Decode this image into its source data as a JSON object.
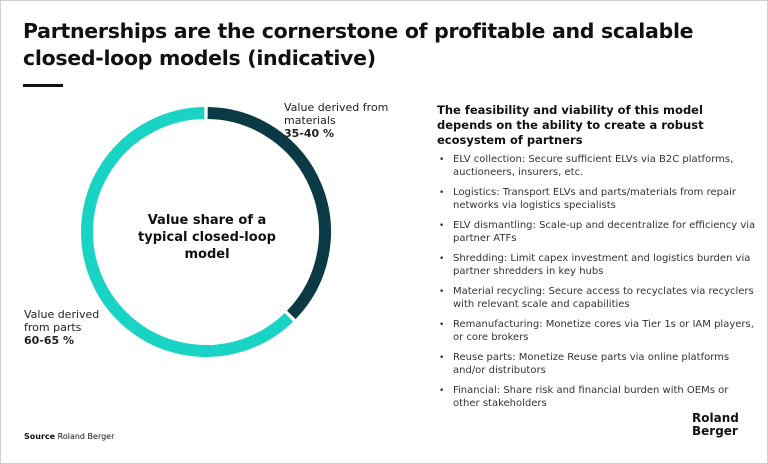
{
  "title": "Partnerships are the cornerstone of profitable and scalable closed-loop models (indicative)",
  "chart_data": {
    "type": "pie",
    "title": "Value share of a typical closed-loop model",
    "categories": [
      "Value derived from materials",
      "Value derived from parts"
    ],
    "values": [
      37.5,
      62.5
    ],
    "ranges": [
      "35-40 %",
      "60-65 %"
    ],
    "colors": [
      "#0b3a45",
      "#19d3c5"
    ]
  },
  "donut": {
    "center": "Value share of a typical closed-loop model",
    "materials_label": "Value derived from materials",
    "materials_value": "35-40 %",
    "parts_label": "Value derived from parts",
    "parts_value": "60-65 %"
  },
  "right": {
    "heading": "The feasibility and viability of this model depends on the ability to create a robust ecosystem of partners",
    "items": [
      "ELV collection: Secure sufficient ELVs via B2C platforms, auctioneers, insurers, etc.",
      "Logistics: Transport ELVs and parts/materials from repair networks via logistics specialists",
      "ELV dismantling: Scale-up and decentralize for efficiency via partner ATFs",
      "Shredding: Limit capex investment and logistics burden via partner shredders in key hubs",
      "Material recycling: Secure access to recyclates via recyclers with relevant scale and capabilities",
      "Remanufacturing: Monetize cores via Tier 1s or IAM players, or core brokers",
      "Reuse parts: Monetize Reuse parts via online platforms and/or distributors",
      "Financial: Share risk and financial burden with OEMs or other stakeholders"
    ]
  },
  "source": {
    "label": "Source",
    "value": "Roland Berger"
  },
  "logo": {
    "line1": "Roland",
    "line2": "Berger"
  }
}
